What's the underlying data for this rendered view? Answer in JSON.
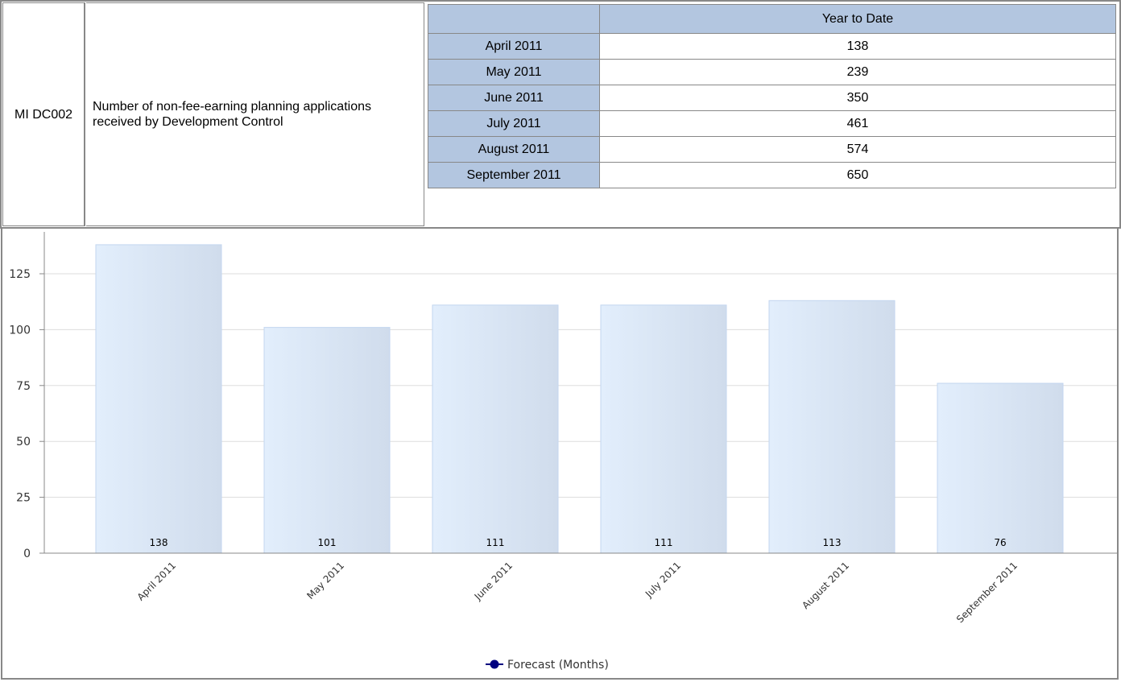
{
  "indicator": {
    "code": "MI DC002",
    "description": "Number of non-fee-earning planning applications received by Development Control"
  },
  "ytd_table": {
    "header": "Year to Date",
    "rows": [
      {
        "month": "April 2011",
        "value": "138"
      },
      {
        "month": "May 2011",
        "value": "239"
      },
      {
        "month": "June 2011",
        "value": "350"
      },
      {
        "month": "July 2011",
        "value": "461"
      },
      {
        "month": "August 2011",
        "value": "574"
      },
      {
        "month": "September 2011",
        "value": "650"
      }
    ]
  },
  "chart_data": {
    "type": "bar",
    "categories": [
      "April 2011",
      "May 2011",
      "June 2011",
      "July 2011",
      "August 2011",
      "September 2011"
    ],
    "values": [
      138,
      101,
      111,
      111,
      113,
      76
    ],
    "data_labels": [
      "138",
      "101",
      "111",
      "111",
      "113",
      "76"
    ],
    "yticks": [
      0,
      25,
      50,
      75,
      100,
      125
    ],
    "ylim": [
      0,
      145
    ],
    "grid": true,
    "legend": {
      "label": "Forecast (Months)",
      "placement": "bottom-center"
    },
    "colors": {
      "bar_fill_start": "#e2eefc",
      "bar_fill_end": "#d0dcec",
      "bar_stroke": "#c3d6ef",
      "legend_marker": "#000080",
      "grid": "#dddddd",
      "axis": "#888888"
    }
  }
}
